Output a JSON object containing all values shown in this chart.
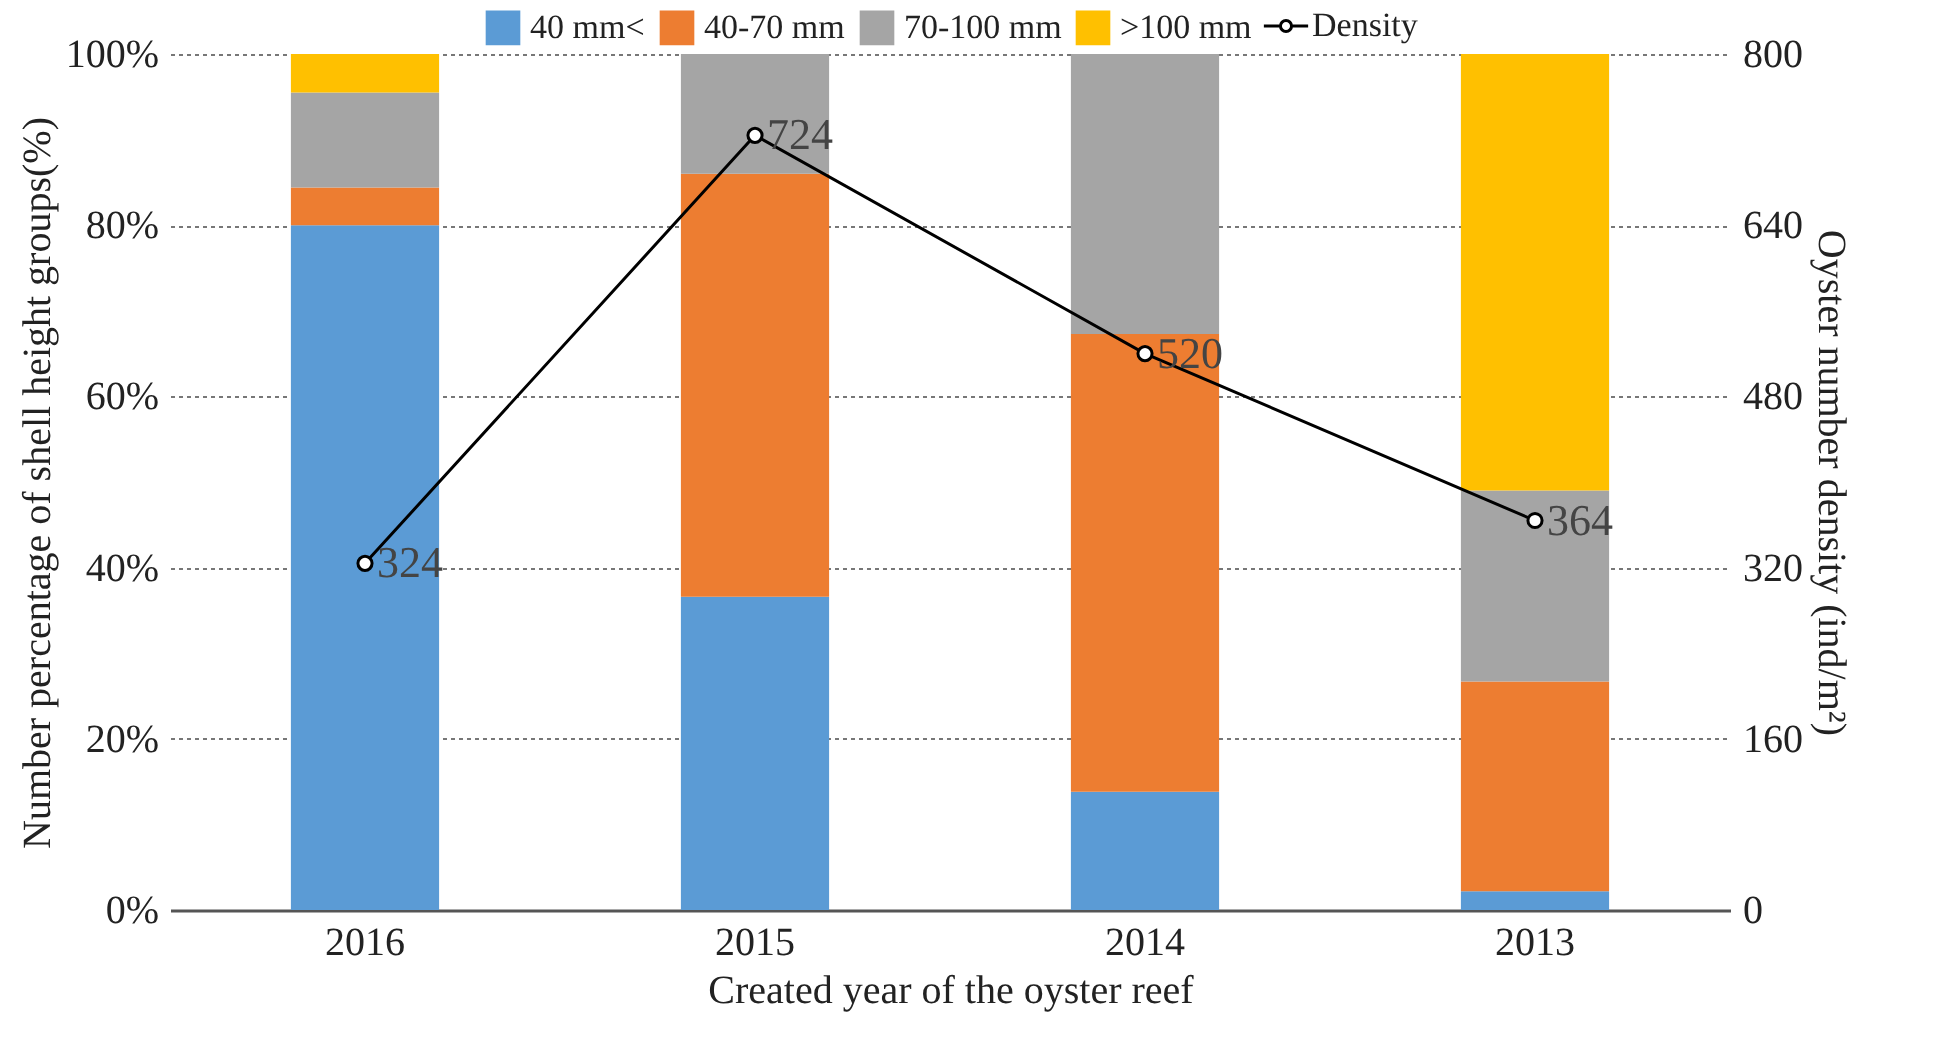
{
  "chart_data": {
    "type": "bar",
    "stacked": true,
    "xlabel": "Created year of the oyster reef",
    "ylabel": "Number percentage of shell height  groups(%)",
    "y2label": "Oyster number density (ind/m²)",
    "categories": [
      "2016",
      "2015",
      "2014",
      "2013"
    ],
    "series": [
      {
        "name": "40 mm<",
        "color": "#5b9bd5",
        "values": [
          80,
          36.6,
          13.8,
          2.2
        ]
      },
      {
        "name": "40-70 mm",
        "color": "#ed7d31",
        "values": [
          4.4,
          49.4,
          53.5,
          24.5
        ]
      },
      {
        "name": "70-100 mm",
        "color": "#a5a5a5",
        "values": [
          11.1,
          14,
          32.7,
          22.3
        ]
      },
      {
        "name": ">100 mm",
        "color": "#ffc000",
        "values": [
          4.5,
          0,
          0,
          51
        ]
      },
      {
        "name": "Density",
        "type": "line",
        "axis": "y2",
        "color": "#000000",
        "marker": "circle",
        "values": [
          324,
          724,
          520,
          364
        ],
        "value_labels": [
          "324",
          "724",
          "520",
          "364"
        ]
      }
    ],
    "ylim": [
      0,
      100
    ],
    "yticks": [
      {
        "value": 0,
        "label": "0%"
      },
      {
        "value": 20,
        "label": "20%"
      },
      {
        "value": 40,
        "label": "40%"
      },
      {
        "value": 60,
        "label": "60%"
      },
      {
        "value": 80,
        "label": "80%"
      },
      {
        "value": 100,
        "label": "100%"
      }
    ],
    "y2lim": [
      0,
      800
    ],
    "y2ticks": [
      0,
      160,
      320,
      480,
      640,
      800
    ],
    "grid": "y",
    "legend": "top"
  }
}
